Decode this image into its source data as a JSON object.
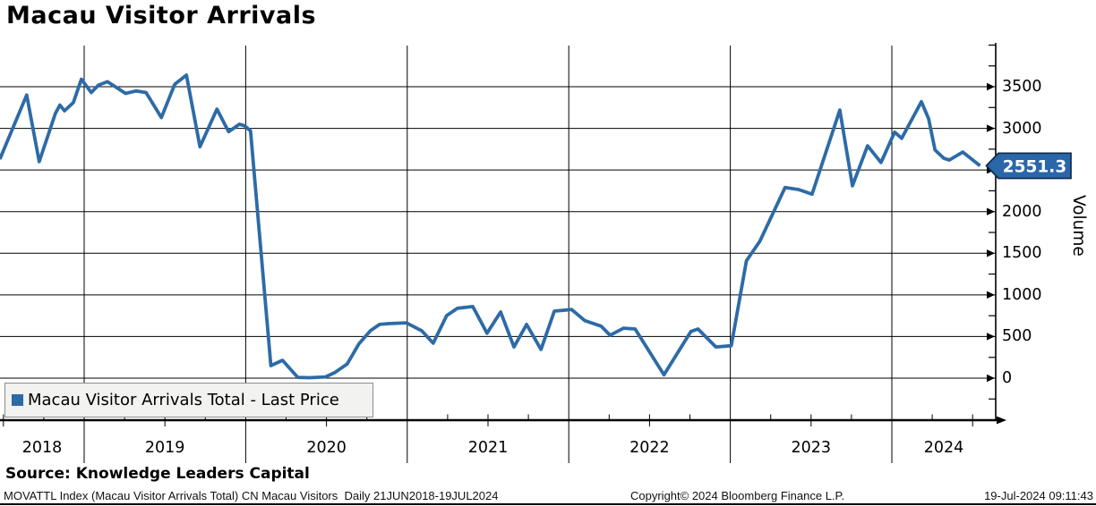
{
  "title": "Macau Visitor Arrivals",
  "legend": {
    "label": "Macau Visitor Arrivals Total - Last Price"
  },
  "footer": {
    "source": "Source: Knowledge Leaders Capital",
    "description": "MOVATTL Index (Macau Visitor Arrivals Total) CN Macau Visitors  Daily 21JUN2018-19JUL2024",
    "copyright": "Copyright© 2024 Bloomberg Finance L.P.",
    "timestamp": "19-Jul-2024 09:11:43"
  },
  "colors": {
    "line": "#2d6ba6",
    "badge_fill": "#2a66a8",
    "badge_border": "#0e2d4d",
    "grid": "#000000",
    "legend_bg": "#f2f2f0"
  },
  "chart_data": {
    "type": "line",
    "title": "Macau Visitor Arrivals",
    "xlabel": "",
    "ylabel": "Volume",
    "x_tick_labels": [
      "2018",
      "2019",
      "2020",
      "2021",
      "2022",
      "2023",
      "2024"
    ],
    "y_ticks_visible": [
      0,
      500,
      1000,
      1500,
      2000,
      3000,
      3500
    ],
    "y_major_gridlines": [
      0,
      500,
      1000,
      1500,
      2000,
      2500,
      3000,
      3500
    ],
    "y_minor_ticks": [
      -250,
      250,
      750,
      1250,
      1750,
      2250,
      2750,
      3250,
      3750,
      4000
    ],
    "ylim": [
      -500,
      4000
    ],
    "xlim_years": [
      2018.47,
      2024.55
    ],
    "grid": true,
    "legend_position": "bottom-left",
    "last_price": 2551.3,
    "last_price_label": "2551.3",
    "series": [
      {
        "name": "Macau Visitor Arrivals Total - Last Price",
        "points": [
          [
            2018.478,
            2630
          ],
          [
            2018.644,
            3400
          ],
          [
            2018.722,
            2600
          ],
          [
            2018.822,
            3180
          ],
          [
            2018.85,
            3280
          ],
          [
            2018.878,
            3210
          ],
          [
            2018.933,
            3310
          ],
          [
            2018.983,
            3590
          ],
          [
            2019.044,
            3430
          ],
          [
            2019.089,
            3520
          ],
          [
            2019.144,
            3560
          ],
          [
            2019.2,
            3490
          ],
          [
            2019.256,
            3420
          ],
          [
            2019.322,
            3450
          ],
          [
            2019.383,
            3430
          ],
          [
            2019.478,
            3130
          ],
          [
            2019.561,
            3530
          ],
          [
            2019.633,
            3640
          ],
          [
            2019.717,
            2780
          ],
          [
            2019.822,
            3230
          ],
          [
            2019.894,
            2960
          ],
          [
            2019.961,
            3050
          ],
          [
            2019.994,
            3030
          ],
          [
            2020.03,
            2970
          ],
          [
            2020.156,
            150
          ],
          [
            2020.228,
            215
          ],
          [
            2020.322,
            10
          ],
          [
            2020.394,
            5
          ],
          [
            2020.494,
            15
          ],
          [
            2020.55,
            65
          ],
          [
            2020.628,
            170
          ],
          [
            2020.7,
            410
          ],
          [
            2020.772,
            570
          ],
          [
            2020.828,
            645
          ],
          [
            2020.883,
            655
          ],
          [
            2020.994,
            665
          ],
          [
            2021.089,
            570
          ],
          [
            2021.161,
            420
          ],
          [
            2021.244,
            750
          ],
          [
            2021.311,
            840
          ],
          [
            2021.406,
            860
          ],
          [
            2021.494,
            540
          ],
          [
            2021.578,
            795
          ],
          [
            2021.661,
            375
          ],
          [
            2021.739,
            645
          ],
          [
            2021.828,
            345
          ],
          [
            2021.911,
            805
          ],
          [
            2022.017,
            825
          ],
          [
            2022.1,
            690
          ],
          [
            2022.2,
            625
          ],
          [
            2022.256,
            515
          ],
          [
            2022.339,
            600
          ],
          [
            2022.411,
            590
          ],
          [
            2022.589,
            40
          ],
          [
            2022.756,
            560
          ],
          [
            2022.8,
            590
          ],
          [
            2022.911,
            375
          ],
          [
            2023.006,
            390
          ],
          [
            2023.1,
            1410
          ],
          [
            2023.183,
            1645
          ],
          [
            2023.339,
            2290
          ],
          [
            2023.422,
            2265
          ],
          [
            2023.506,
            2210
          ],
          [
            2023.678,
            3220
          ],
          [
            2023.756,
            2310
          ],
          [
            2023.85,
            2790
          ],
          [
            2023.933,
            2590
          ],
          [
            2024.017,
            2955
          ],
          [
            2024.061,
            2880
          ],
          [
            2024.183,
            3320
          ],
          [
            2024.228,
            3115
          ],
          [
            2024.267,
            2740
          ],
          [
            2024.322,
            2640
          ],
          [
            2024.356,
            2620
          ],
          [
            2024.439,
            2715
          ],
          [
            2024.546,
            2551.3
          ]
        ]
      }
    ]
  }
}
